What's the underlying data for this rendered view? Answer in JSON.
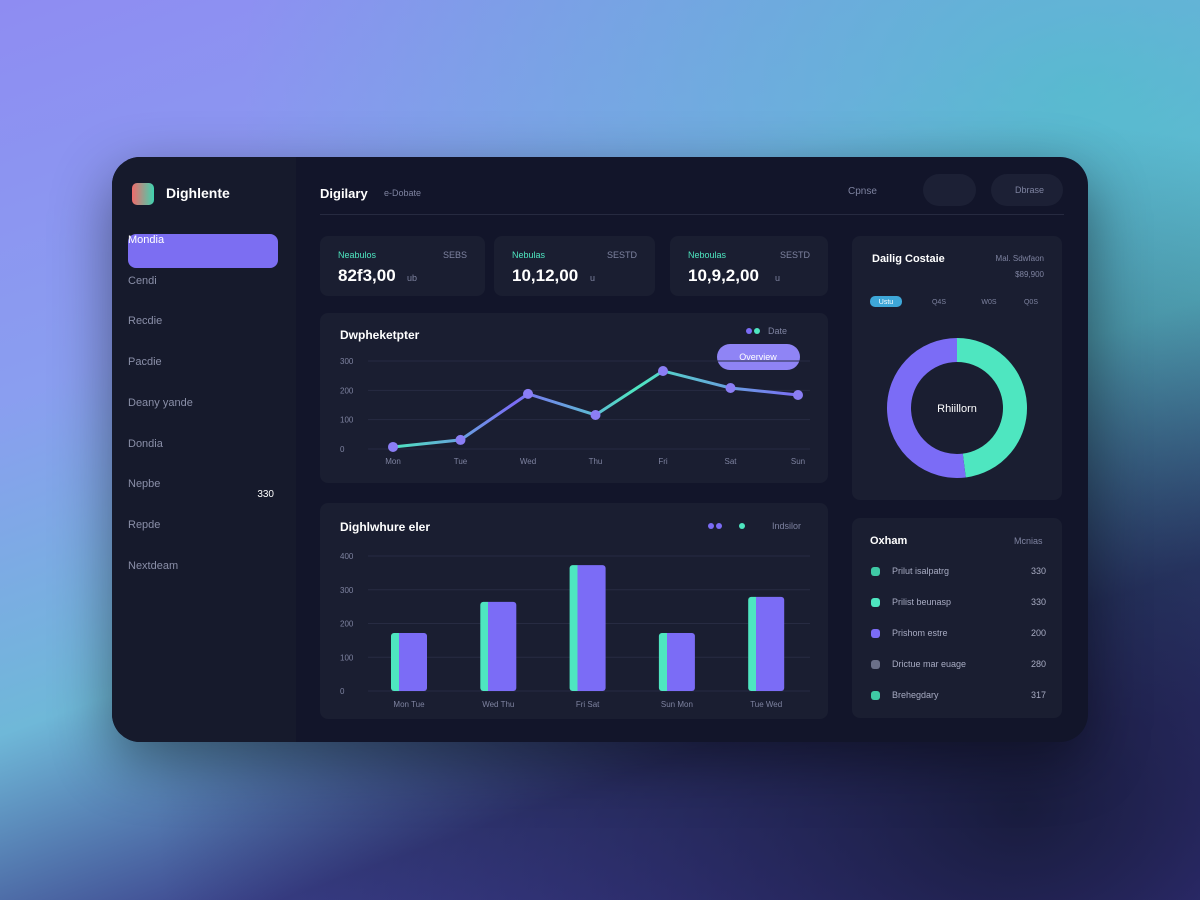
{
  "app": {
    "name": "Dighlente"
  },
  "header": {
    "title": "Digilary",
    "subtitle": "e-Dobate",
    "search": "Cpnse",
    "user": "Dbrase"
  },
  "nav": [
    {
      "label": "Mondia"
    },
    {
      "label": "Cendi"
    },
    {
      "label": "Recdie"
    },
    {
      "label": "Pacdie"
    },
    {
      "label": "Deany yande"
    },
    {
      "label": "Dondia"
    },
    {
      "label": "Nepbe",
      "badge": "330"
    },
    {
      "label": "Repde"
    },
    {
      "label": "Nextdeam"
    }
  ],
  "stats": [
    {
      "label": "Neabulos",
      "note": "SEBS",
      "value": "82f3,00",
      "unit": "ub"
    },
    {
      "label": "Nebulas",
      "note": "SESTD",
      "value": "10,12,00",
      "unit": "u"
    },
    {
      "label": "Neboulas",
      "note": "SESTD",
      "value": "10,9,2,00",
      "unit": "u"
    }
  ],
  "line_chart": {
    "type": "line",
    "title": "Dwpheketpter",
    "legend": "Date",
    "button": "Overview",
    "categories": [
      "Mon",
      "Tue",
      "Wed",
      "Thu",
      "Fri",
      "Sat",
      "Sun"
    ],
    "color": "#7b6cf6",
    "color2": "#4ee6c0",
    "values": [
      7,
      31,
      188,
      116,
      266,
      208,
      184
    ],
    "ylim": [
      0,
      300
    ],
    "yticks": [
      0,
      100,
      200,
      300
    ],
    "grid": true
  },
  "bar_chart": {
    "type": "bar",
    "title": "Dighlwhure eler",
    "legend": "Indsilor",
    "categories": [
      "Mon Tue",
      "Wed Thu",
      "Fri Sat",
      "Sun Mon",
      "Tue Wed"
    ],
    "color": "#7b6cf6",
    "color2": "#4ee6c0",
    "values": [
      172,
      264,
      373,
      172,
      279
    ],
    "ylim": [
      0,
      400
    ],
    "yticks": [
      0,
      100,
      200,
      300,
      400
    ],
    "grid": true
  },
  "donut": {
    "type": "pie",
    "title": "Dailig Costaie",
    "subtitle": "Mal. Sdwfaon",
    "note": "$89,900",
    "center": "Rhiillorn",
    "tabs": [
      "Ustu",
      "Q4S",
      "W0S",
      "Q0S"
    ],
    "values": [
      48,
      52
    ],
    "colors": [
      "#4ee6c0",
      "#7b6cf6"
    ]
  },
  "list": {
    "title": "Oxham",
    "tag": "Mcnias",
    "items": [
      {
        "label": "Prilut isalpatrg",
        "value": 330,
        "color": "#3fc9a5"
      },
      {
        "label": "Prilist beunasp",
        "value": 330,
        "color": "#4ee6c0"
      },
      {
        "label": "Prishom estre",
        "value": 200,
        "color": "#7b6cf6"
      },
      {
        "label": "Drictue mar euage",
        "value": 280,
        "color": "#6a6f88"
      },
      {
        "label": "Brehegdary",
        "value": 317,
        "color": "#3fc9a5"
      }
    ]
  }
}
